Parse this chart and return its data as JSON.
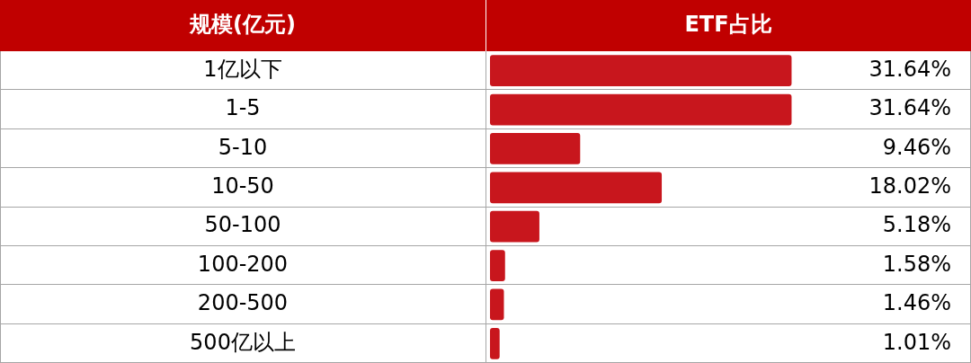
{
  "chart_data": {
    "type": "bar",
    "orientation": "horizontal",
    "ylabel": "规模(亿元)",
    "xlabel": "ETF占比",
    "categories": [
      "1亿以下",
      "1-5",
      "5-10",
      "10-50",
      "50-100",
      "100-200",
      "200-500",
      "500亿以上"
    ],
    "values": [
      31.64,
      31.64,
      9.46,
      18.02,
      5.18,
      1.58,
      1.46,
      1.01
    ],
    "value_labels": [
      "31.64%",
      "31.64%",
      "9.46%",
      "18.02%",
      "5.18%",
      "1.58%",
      "1.46%",
      "1.01%"
    ],
    "color": "#c8161d",
    "grid": true,
    "legend": false
  }
}
